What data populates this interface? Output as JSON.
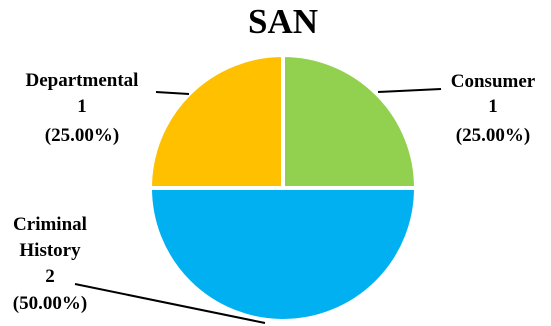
{
  "chart_data": {
    "type": "pie",
    "title": "SAN",
    "slices": [
      {
        "name": "Consumer",
        "value": 1,
        "percent_label": "(25.00%)",
        "color": "#92D050"
      },
      {
        "name": "Criminal History",
        "name_lines": [
          "Criminal",
          "History"
        ],
        "value": 2,
        "percent_label": "(50.00%)",
        "color": "#00B0F0"
      },
      {
        "name": "Departmental",
        "value": 1,
        "percent_label": "(25.00%)",
        "color": "#FFC000"
      }
    ],
    "start_angle_deg": 0,
    "direction": "clockwise",
    "slice_border_color": "#ffffff"
  }
}
